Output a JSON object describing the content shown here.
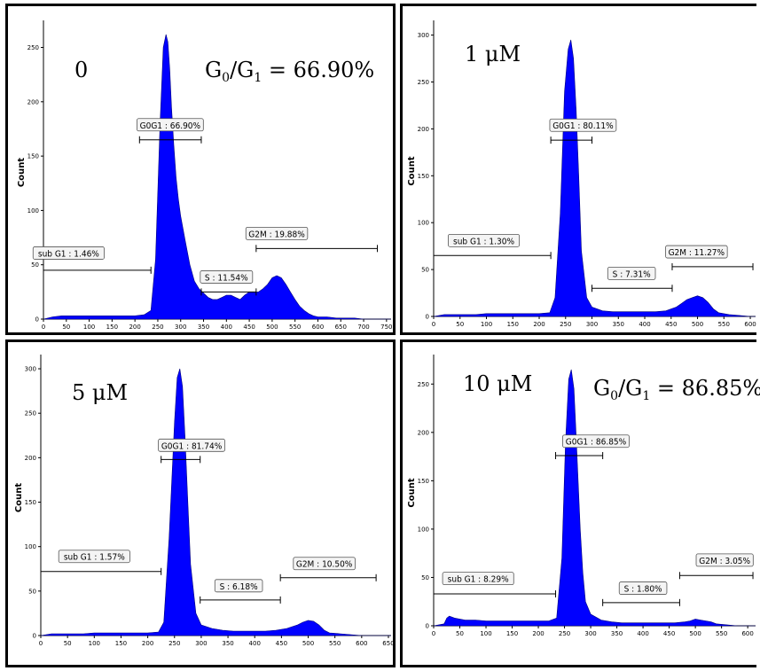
{
  "chart_data": [
    {
      "type": "area",
      "panel_label": "0",
      "annotation": {
        "g0": "G",
        "sub0": "0",
        "sep": "/G",
        "sub1": "1",
        "value": " = 66.90%"
      },
      "ylabel": "Count",
      "xlim": [
        0,
        760
      ],
      "ylim": [
        0,
        270
      ],
      "xticks": [
        0,
        50,
        100,
        150,
        200,
        250,
        300,
        350,
        400,
        450,
        500,
        550,
        600,
        650,
        700,
        750
      ],
      "yticks": [
        0,
        50,
        100,
        150,
        200,
        250
      ],
      "color": "#0000ff",
      "x": [
        0,
        20,
        40,
        60,
        80,
        100,
        120,
        140,
        160,
        180,
        200,
        220,
        235,
        245,
        255,
        262,
        268,
        272,
        276,
        280,
        285,
        290,
        295,
        300,
        310,
        320,
        330,
        340,
        350,
        360,
        370,
        380,
        390,
        400,
        410,
        420,
        430,
        440,
        450,
        460,
        470,
        480,
        490,
        500,
        510,
        520,
        530,
        540,
        550,
        560,
        570,
        580,
        590,
        600,
        620,
        640,
        660,
        680,
        700,
        720,
        740,
        760
      ],
      "y": [
        0,
        2,
        3,
        3,
        3,
        3,
        3,
        3,
        3,
        3,
        3,
        4,
        8,
        55,
        180,
        250,
        262,
        255,
        230,
        195,
        160,
        130,
        110,
        95,
        72,
        50,
        35,
        28,
        24,
        20,
        18,
        18,
        20,
        22,
        22,
        20,
        18,
        22,
        25,
        25,
        25,
        28,
        32,
        38,
        40,
        38,
        32,
        25,
        18,
        12,
        8,
        5,
        3,
        2,
        2,
        1,
        1,
        1,
        0,
        0,
        0,
        0
      ],
      "gates": [
        {
          "label": "sub G1 : 1.46%",
          "x0": 0,
          "x1": 235,
          "y": 45,
          "label_x": 55,
          "label_y": 60
        },
        {
          "label": "G0G1 : 66.90%",
          "x0": 210,
          "x1": 345,
          "y": 165,
          "label_x": 277,
          "label_y": 178
        },
        {
          "label": "S : 11.54%",
          "x0": 345,
          "x1": 465,
          "y": 25,
          "label_x": 400,
          "label_y": 38
        },
        {
          "label": "G2M : 19.88%",
          "x0": 465,
          "x1": 730,
          "y": 65,
          "label_x": 510,
          "label_y": 78
        }
      ]
    },
    {
      "type": "area",
      "panel_label": "1 μM",
      "annotation": null,
      "ylabel": "Count",
      "xlim": [
        0,
        610
      ],
      "ylim": [
        0,
        310
      ],
      "xticks": [
        0,
        50,
        100,
        150,
        200,
        250,
        300,
        350,
        400,
        450,
        500,
        550,
        600
      ],
      "yticks": [
        0,
        50,
        100,
        150,
        200,
        250,
        300
      ],
      "color": "#0000ff",
      "x": [
        0,
        20,
        40,
        60,
        80,
        100,
        120,
        140,
        160,
        180,
        200,
        220,
        230,
        240,
        248,
        255,
        260,
        265,
        270,
        275,
        280,
        290,
        300,
        320,
        340,
        360,
        380,
        400,
        420,
        440,
        460,
        470,
        480,
        490,
        500,
        510,
        520,
        530,
        540,
        560,
        580,
        600,
        610
      ],
      "y": [
        0,
        2,
        2,
        2,
        2,
        3,
        3,
        3,
        3,
        3,
        3,
        4,
        20,
        110,
        240,
        285,
        295,
        275,
        220,
        150,
        70,
        20,
        10,
        6,
        5,
        5,
        5,
        5,
        5,
        6,
        10,
        14,
        18,
        20,
        22,
        20,
        15,
        8,
        4,
        2,
        1,
        0,
        0
      ],
      "gates": [
        {
          "label": "sub G1 : 1.30%",
          "x0": 0,
          "x1": 222,
          "y": 65,
          "label_x": 95,
          "label_y": 80
        },
        {
          "label": "G0G1 : 80.11%",
          "x0": 222,
          "x1": 300,
          "y": 188,
          "label_x": 283,
          "label_y": 203
        },
        {
          "label": "S : 7.31%",
          "x0": 300,
          "x1": 452,
          "y": 30,
          "label_x": 375,
          "label_y": 45
        },
        {
          "label": "G2M : 11.27%",
          "x0": 452,
          "x1": 605,
          "y": 53,
          "label_x": 498,
          "label_y": 68
        }
      ]
    },
    {
      "type": "area",
      "panel_label": "5 μM",
      "annotation": null,
      "ylabel": "Count",
      "xlim": [
        0,
        655
      ],
      "ylim": [
        0,
        310
      ],
      "xticks": [
        0,
        50,
        100,
        150,
        200,
        250,
        300,
        350,
        400,
        450,
        500,
        550,
        600,
        650
      ],
      "yticks": [
        0,
        50,
        100,
        150,
        200,
        250,
        300
      ],
      "color": "#0000ff",
      "x": [
        0,
        20,
        40,
        60,
        80,
        100,
        120,
        140,
        160,
        180,
        200,
        220,
        230,
        240,
        250,
        255,
        260,
        265,
        270,
        275,
        280,
        290,
        300,
        320,
        340,
        360,
        380,
        400,
        420,
        440,
        460,
        470,
        480,
        490,
        500,
        510,
        520,
        530,
        540,
        560,
        580,
        600,
        620,
        655
      ],
      "y": [
        0,
        2,
        2,
        2,
        2,
        3,
        3,
        3,
        3,
        3,
        3,
        4,
        15,
        110,
        240,
        290,
        300,
        280,
        220,
        150,
        80,
        25,
        12,
        8,
        6,
        5,
        5,
        5,
        5,
        6,
        8,
        10,
        12,
        15,
        17,
        16,
        12,
        6,
        3,
        2,
        1,
        0,
        0,
        0
      ],
      "gates": [
        {
          "label": "sub G1 : 1.57%",
          "x0": 0,
          "x1": 225,
          "y": 72,
          "label_x": 100,
          "label_y": 88
        },
        {
          "label": "G0G1 : 81.74%",
          "x0": 225,
          "x1": 298,
          "y": 198,
          "label_x": 282,
          "label_y": 213
        },
        {
          "label": "S : 6.18%",
          "x0": 298,
          "x1": 448,
          "y": 40,
          "label_x": 370,
          "label_y": 55
        },
        {
          "label": "G2M : 10.50%",
          "x0": 448,
          "x1": 627,
          "y": 65,
          "label_x": 530,
          "label_y": 80
        }
      ]
    },
    {
      "type": "area",
      "panel_label": "10 μM",
      "annotation": {
        "g0": "G",
        "sub0": "0",
        "sep": "/G",
        "sub1": "1",
        "value": " = 86.85%"
      },
      "ylabel": "Count",
      "xlim": [
        0,
        615
      ],
      "ylim": [
        0,
        275
      ],
      "xticks": [
        0,
        50,
        100,
        150,
        200,
        250,
        300,
        350,
        400,
        450,
        500,
        550,
        600
      ],
      "yticks": [
        0,
        50,
        100,
        150,
        200,
        250
      ],
      "color": "#0000ff",
      "x": [
        0,
        20,
        25,
        30,
        40,
        60,
        80,
        100,
        120,
        140,
        160,
        180,
        200,
        220,
        235,
        245,
        252,
        258,
        263,
        268,
        272,
        276,
        280,
        285,
        290,
        300,
        320,
        340,
        360,
        380,
        400,
        420,
        440,
        460,
        480,
        490,
        500,
        510,
        520,
        530,
        540,
        560,
        580,
        600,
        615
      ],
      "y": [
        0,
        2,
        8,
        10,
        8,
        6,
        6,
        5,
        5,
        5,
        5,
        5,
        5,
        5,
        8,
        70,
        190,
        255,
        265,
        245,
        200,
        150,
        100,
        55,
        25,
        12,
        6,
        4,
        3,
        3,
        3,
        3,
        3,
        3,
        4,
        5,
        7,
        6,
        5,
        4,
        2,
        1,
        0,
        0,
        0
      ],
      "gates": [
        {
          "label": "sub G1 : 8.29%",
          "x0": 0,
          "x1": 233,
          "y": 33,
          "label_x": 85,
          "label_y": 48
        },
        {
          "label": "G0G1 : 86.85%",
          "x0": 233,
          "x1": 323,
          "y": 176,
          "label_x": 310,
          "label_y": 190
        },
        {
          "label": "S : 1.80%",
          "x0": 323,
          "x1": 470,
          "y": 24,
          "label_x": 400,
          "label_y": 38
        },
        {
          "label": "G2M : 3.05%",
          "x0": 470,
          "x1": 610,
          "y": 52,
          "label_x": 556,
          "label_y": 67
        }
      ]
    }
  ]
}
